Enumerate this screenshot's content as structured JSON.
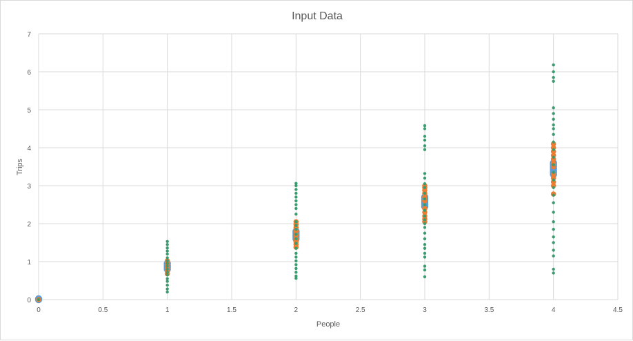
{
  "chart_data": {
    "type": "scatter",
    "title": "Input Data",
    "xlabel": "People",
    "ylabel": "Trips",
    "xlim": [
      0,
      4.5
    ],
    "ylim": [
      0,
      7
    ],
    "x_ticks": [
      "0",
      "0.5",
      "1",
      "1.5",
      "2",
      "2.5",
      "3",
      "3.5",
      "4",
      "4.5"
    ],
    "y_ticks": [
      "0",
      "1",
      "2",
      "3",
      "4",
      "5",
      "6",
      "7"
    ],
    "grid": true,
    "legend": "none",
    "series": [
      {
        "color": "#5b9bd5",
        "marker": "circle-large",
        "points": [
          [
            0,
            0
          ],
          [
            0,
            0.02
          ],
          [
            1,
            0.8
          ],
          [
            1,
            0.85
          ],
          [
            1,
            0.9
          ],
          [
            1,
            0.95
          ],
          [
            2,
            1.6
          ],
          [
            2,
            1.65
          ],
          [
            2,
            1.7
          ],
          [
            2,
            1.75
          ],
          [
            2,
            1.8
          ],
          [
            3,
            2.45
          ],
          [
            3,
            2.5
          ],
          [
            3,
            2.55
          ],
          [
            3,
            2.6
          ],
          [
            3,
            2.65
          ],
          [
            3,
            2.7
          ],
          [
            4,
            3.3
          ],
          [
            4,
            3.35
          ],
          [
            4,
            3.4
          ],
          [
            4,
            3.45
          ],
          [
            4,
            3.5
          ],
          [
            4,
            3.55
          ],
          [
            4,
            3.6
          ]
        ]
      },
      {
        "color": "#ed7d31",
        "marker": "circle-medium",
        "points": [
          [
            0,
            0
          ],
          [
            1,
            0.68
          ],
          [
            1,
            0.75
          ],
          [
            1,
            0.82
          ],
          [
            1,
            0.9
          ],
          [
            1,
            0.97
          ],
          [
            1,
            1.02
          ],
          [
            2,
            1.38
          ],
          [
            2,
            1.45
          ],
          [
            2,
            1.52
          ],
          [
            2,
            1.6
          ],
          [
            2,
            1.7
          ],
          [
            2,
            1.8
          ],
          [
            2,
            1.9
          ],
          [
            2,
            1.98
          ],
          [
            2,
            2.05
          ],
          [
            3,
            2.05
          ],
          [
            3,
            2.12
          ],
          [
            3,
            2.2
          ],
          [
            3,
            2.3
          ],
          [
            3,
            2.4
          ],
          [
            3,
            2.6
          ],
          [
            3,
            2.7
          ],
          [
            3,
            2.8
          ],
          [
            3,
            2.88
          ],
          [
            3,
            2.95
          ],
          [
            3,
            3.0
          ],
          [
            4,
            2.78
          ],
          [
            4,
            3.0
          ],
          [
            4,
            3.1
          ],
          [
            4,
            3.2
          ],
          [
            4,
            3.3
          ],
          [
            4,
            3.5
          ],
          [
            4,
            3.6
          ],
          [
            4,
            3.7
          ],
          [
            4,
            3.8
          ],
          [
            4,
            3.9
          ],
          [
            4,
            4.0
          ],
          [
            4,
            4.1
          ]
        ]
      },
      {
        "color": "#3a9b6e",
        "marker": "circle-small",
        "points": [
          [
            0,
            0.0
          ],
          [
            1,
            0.2
          ],
          [
            1,
            0.28
          ],
          [
            1,
            0.38
          ],
          [
            1,
            0.48
          ],
          [
            1,
            0.55
          ],
          [
            1,
            0.65
          ],
          [
            1,
            0.72
          ],
          [
            1,
            0.8
          ],
          [
            1,
            0.88
          ],
          [
            1,
            0.95
          ],
          [
            1,
            1.02
          ],
          [
            1,
            1.1
          ],
          [
            1,
            1.2
          ],
          [
            1,
            1.28
          ],
          [
            1,
            1.36
          ],
          [
            1,
            1.45
          ],
          [
            1,
            1.53
          ],
          [
            2,
            0.56
          ],
          [
            2,
            0.62
          ],
          [
            2,
            0.72
          ],
          [
            2,
            0.82
          ],
          [
            2,
            0.92
          ],
          [
            2,
            1.02
          ],
          [
            2,
            1.12
          ],
          [
            2,
            1.22
          ],
          [
            2,
            1.35
          ],
          [
            2,
            1.48
          ],
          [
            2,
            1.6
          ],
          [
            2,
            1.72
          ],
          [
            2,
            1.85
          ],
          [
            2,
            1.95
          ],
          [
            2,
            2.05
          ],
          [
            2,
            2.25
          ],
          [
            2,
            2.4
          ],
          [
            2,
            2.5
          ],
          [
            2,
            2.6
          ],
          [
            2,
            2.7
          ],
          [
            2,
            2.8
          ],
          [
            2,
            2.9
          ],
          [
            2,
            3.0
          ],
          [
            2,
            3.06
          ],
          [
            3,
            0.6
          ],
          [
            3,
            0.78
          ],
          [
            3,
            0.88
          ],
          [
            3,
            1.12
          ],
          [
            3,
            1.22
          ],
          [
            3,
            1.35
          ],
          [
            3,
            1.45
          ],
          [
            3,
            1.6
          ],
          [
            3,
            1.75
          ],
          [
            3,
            1.9
          ],
          [
            3,
            2.0
          ],
          [
            3,
            2.1
          ],
          [
            3,
            2.2
          ],
          [
            3,
            2.35
          ],
          [
            3,
            2.5
          ],
          [
            3,
            2.65
          ],
          [
            3,
            2.8
          ],
          [
            3,
            2.95
          ],
          [
            3,
            3.05
          ],
          [
            3,
            3.2
          ],
          [
            3,
            3.32
          ],
          [
            3,
            3.95
          ],
          [
            3,
            4.05
          ],
          [
            3,
            4.2
          ],
          [
            3,
            4.3
          ],
          [
            3,
            4.5
          ],
          [
            3,
            4.58
          ],
          [
            4,
            0.7
          ],
          [
            4,
            0.8
          ],
          [
            4,
            1.15
          ],
          [
            4,
            1.3
          ],
          [
            4,
            1.5
          ],
          [
            4,
            1.65
          ],
          [
            4,
            1.85
          ],
          [
            4,
            2.05
          ],
          [
            4,
            2.3
          ],
          [
            4,
            2.55
          ],
          [
            4,
            2.75
          ],
          [
            4,
            2.95
          ],
          [
            4,
            3.15
          ],
          [
            4,
            3.35
          ],
          [
            4,
            3.55
          ],
          [
            4,
            3.75
          ],
          [
            4,
            3.95
          ],
          [
            4,
            4.15
          ],
          [
            4,
            4.35
          ],
          [
            4,
            4.5
          ],
          [
            4,
            4.6
          ],
          [
            4,
            4.75
          ],
          [
            4,
            4.9
          ],
          [
            4,
            5.05
          ],
          [
            4,
            5.75
          ],
          [
            4,
            5.85
          ],
          [
            4,
            6.0
          ],
          [
            4,
            6.18
          ]
        ]
      }
    ]
  }
}
